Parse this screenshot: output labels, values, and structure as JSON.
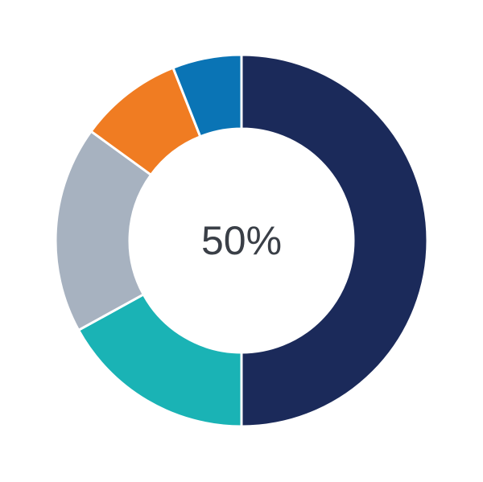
{
  "chart_data": {
    "type": "pie",
    "donut": true,
    "center_label": "50%",
    "start": "top",
    "direction": "clockwise",
    "slices": [
      {
        "value": 50,
        "color": "#1b2a5a"
      },
      {
        "value": 17,
        "color": "#1ab3b5"
      },
      {
        "value": 18,
        "color": "#a7b2c0"
      },
      {
        "value": 9,
        "color": "#f07c22"
      },
      {
        "value": 6,
        "color": "#0a74b5"
      }
    ]
  }
}
